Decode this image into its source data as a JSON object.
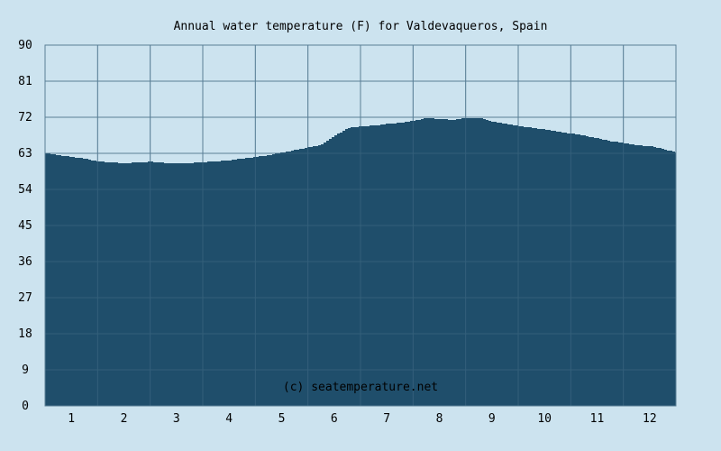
{
  "chart_data": {
    "type": "area",
    "title": "Annual water temperature (F) for Valdevaqueros, Spain",
    "watermark": "(c) seatemperature.net",
    "xlabel": "",
    "ylabel": "",
    "xlim": [
      0.5,
      12.5
    ],
    "ylim": [
      0,
      90
    ],
    "y_ticks": [
      "0",
      "9",
      "18",
      "27",
      "36",
      "45",
      "54",
      "63",
      "72",
      "81",
      "90"
    ],
    "x_ticks": [
      "1",
      "2",
      "3",
      "4",
      "5",
      "6",
      "7",
      "8",
      "9",
      "10",
      "11",
      "12"
    ],
    "grid": true,
    "colors": {
      "background": "#cce3ef",
      "fill": "#1f4e6b",
      "grid": "#5a7f96"
    },
    "x": [
      0.5,
      0.75,
      1.0,
      1.25,
      1.5,
      1.75,
      2.0,
      2.25,
      2.5,
      2.75,
      3.0,
      3.25,
      3.5,
      3.75,
      4.0,
      4.25,
      4.5,
      4.75,
      5.0,
      5.25,
      5.5,
      5.75,
      6.0,
      6.25,
      6.5,
      6.75,
      7.0,
      7.25,
      7.5,
      7.75,
      8.0,
      8.25,
      8.5,
      8.75,
      9.0,
      9.25,
      9.5,
      9.75,
      10.0,
      10.25,
      10.5,
      10.75,
      11.0,
      11.25,
      11.5,
      11.75,
      12.0,
      12.25,
      12.5
    ],
    "values": [
      63.0,
      62.5,
      62.1,
      61.6,
      60.9,
      60.8,
      60.5,
      60.8,
      60.9,
      60.6,
      60.5,
      60.6,
      60.8,
      61.0,
      61.3,
      61.7,
      62.1,
      62.6,
      63.2,
      63.9,
      64.5,
      65.2,
      67.5,
      69.3,
      69.8,
      69.9,
      70.4,
      70.6,
      71.2,
      71.8,
      71.5,
      71.4,
      71.8,
      71.8,
      70.9,
      70.3,
      69.8,
      69.4,
      68.9,
      68.4,
      67.9,
      67.4,
      66.7,
      66.0,
      65.6,
      65.0,
      64.8,
      64.0,
      63.2
    ]
  }
}
